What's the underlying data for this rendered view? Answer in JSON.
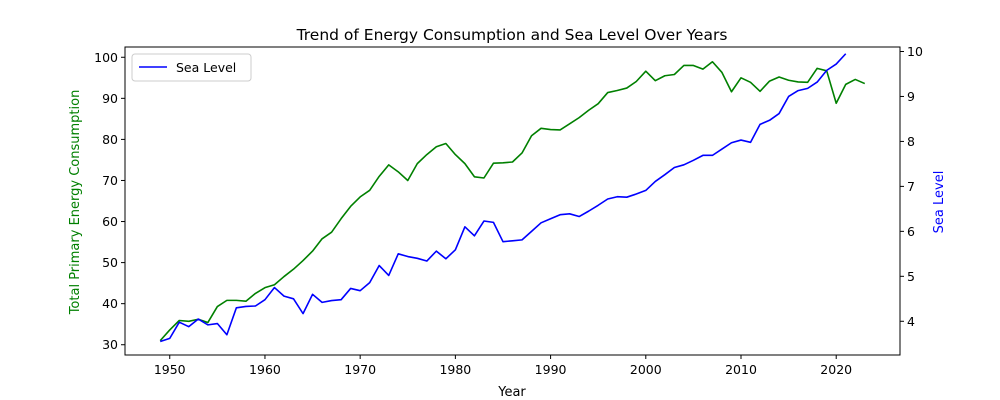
{
  "chart_data": {
    "type": "line",
    "title": "Trend of Energy Consumption and Sea Level Over Years",
    "xlabel": "Year",
    "ylabel_left": "Total Primary Energy Consumption",
    "ylabel_right": "Sea Level",
    "xlim": [
      1945.3,
      2026.7
    ],
    "ylim_left": [
      27.5,
      102.5
    ],
    "ylim_right": [
      3.25,
      10.1
    ],
    "x_ticks": [
      1950,
      1960,
      1970,
      1980,
      1990,
      2000,
      2010,
      2020
    ],
    "y_ticks_left": [
      30,
      40,
      50,
      60,
      70,
      80,
      90,
      100
    ],
    "y_ticks_right": [
      4,
      5,
      6,
      7,
      8,
      9,
      10
    ],
    "grid": false,
    "legend_position": "top-left",
    "series": [
      {
        "axis": "left",
        "color": "#008000",
        "x": [
          1949,
          1950,
          1951,
          1952,
          1953,
          1954,
          1955,
          1956,
          1957,
          1958,
          1959,
          1960,
          1961,
          1962,
          1963,
          1964,
          1965,
          1966,
          1967,
          1968,
          1969,
          1970,
          1971,
          1972,
          1973,
          1974,
          1975,
          1976,
          1977,
          1978,
          1979,
          1980,
          1981,
          1982,
          1983,
          1984,
          1985,
          1986,
          1987,
          1988,
          1989,
          1990,
          1991,
          1992,
          1993,
          1994,
          1995,
          1996,
          1997,
          1998,
          1999,
          2000,
          2001,
          2002,
          2003,
          2004,
          2005,
          2006,
          2007,
          2008,
          2009,
          2010,
          2011,
          2012,
          2013,
          2014,
          2015,
          2016,
          2017,
          2018,
          2019,
          2020,
          2021,
          2022,
          2023
        ],
        "values": [
          31.0,
          33.6,
          35.9,
          35.7,
          36.2,
          35.4,
          39.3,
          40.8,
          40.8,
          40.6,
          42.5,
          43.9,
          44.6,
          46.6,
          48.4,
          50.5,
          52.8,
          55.8,
          57.4,
          60.7,
          63.7,
          66.0,
          67.6,
          71.0,
          73.8,
          72.1,
          70.0,
          74.1,
          76.3,
          78.2,
          79.0,
          76.3,
          74.1,
          70.9,
          70.6,
          74.2,
          74.3,
          74.5,
          76.7,
          80.9,
          82.7,
          82.4,
          82.3,
          83.8,
          85.3,
          87.1,
          88.7,
          91.4,
          91.9,
          92.5,
          94.1,
          96.6,
          94.3,
          95.5,
          95.8,
          98.0,
          98.0,
          97.1,
          98.9,
          96.3,
          91.6,
          95.0,
          93.9,
          91.7,
          94.2,
          95.2,
          94.4,
          94.0,
          93.9,
          97.3,
          96.7,
          88.8,
          93.4,
          94.6,
          93.6
        ]
      },
      {
        "name": "Sea Level",
        "axis": "right",
        "color": "#0000ff",
        "x": [
          1949,
          1950,
          1951,
          1952,
          1953,
          1954,
          1955,
          1956,
          1957,
          1958,
          1959,
          1960,
          1961,
          1962,
          1963,
          1964,
          1965,
          1966,
          1967,
          1968,
          1969,
          1970,
          1971,
          1972,
          1973,
          1974,
          1975,
          1976,
          1977,
          1978,
          1979,
          1980,
          1981,
          1982,
          1983,
          1984,
          1985,
          1986,
          1987,
          1988,
          1989,
          1990,
          1991,
          1992,
          1993,
          1994,
          1995,
          1996,
          1997,
          1998,
          1999,
          2000,
          2001,
          2002,
          2003,
          2004,
          2005,
          2006,
          2007,
          2008,
          2009,
          2010,
          2011,
          2012,
          2013,
          2014,
          2015,
          2016,
          2017,
          2018,
          2019,
          2020,
          2021
        ],
        "values": [
          3.55,
          3.62,
          3.98,
          3.88,
          4.05,
          3.92,
          3.95,
          3.7,
          4.3,
          4.33,
          4.34,
          4.48,
          4.75,
          4.56,
          4.5,
          4.17,
          4.6,
          4.42,
          4.46,
          4.48,
          4.73,
          4.68,
          4.86,
          5.24,
          5.02,
          5.5,
          5.44,
          5.4,
          5.34,
          5.56,
          5.39,
          5.59,
          6.1,
          5.9,
          6.23,
          6.2,
          5.77,
          5.79,
          5.81,
          6.0,
          6.19,
          6.28,
          6.37,
          6.39,
          6.33,
          6.45,
          6.58,
          6.72,
          6.77,
          6.76,
          6.83,
          6.91,
          7.11,
          7.26,
          7.42,
          7.48,
          7.58,
          7.69,
          7.69,
          7.83,
          7.97,
          8.03,
          7.98,
          8.38,
          8.47,
          8.62,
          9.0,
          9.13,
          9.18,
          9.32,
          9.58,
          9.72,
          9.95
        ]
      }
    ]
  }
}
